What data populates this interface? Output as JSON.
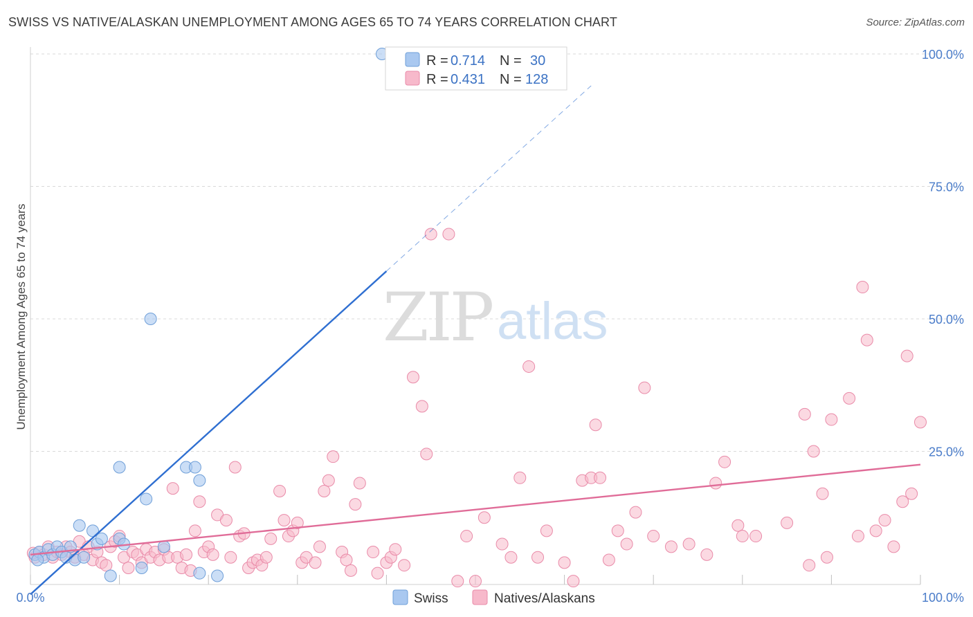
{
  "title": "SWISS VS NATIVE/ALASKAN UNEMPLOYMENT AMONG AGES 65 TO 74 YEARS CORRELATION CHART",
  "source": "Source: ZipAtlas.com",
  "watermark": {
    "zip": "ZIP",
    "atlas": "atlas"
  },
  "legend": {
    "rows": [
      {
        "r_label": "R =",
        "r_value": "0.714",
        "n_label": "N =",
        "n_value": "30",
        "color": "#a9c8f0"
      },
      {
        "r_label": "R =",
        "r_value": "0.431",
        "n_label": "N =",
        "n_value": "128",
        "color": "#f7b9cb"
      }
    ]
  },
  "colors": {
    "swiss_fill": "#a9c8f0",
    "swiss_stroke": "#6f9fd8",
    "swiss_line": "#2f6fd1",
    "native_fill": "#f7b9cb",
    "native_stroke": "#e98aa8",
    "native_line": "#e06c98",
    "grid": "#d8d8d8",
    "tick_text": "#4a7cc9"
  },
  "chart_data": {
    "type": "scatter",
    "title": "SWISS VS NATIVE/ALASKAN UNEMPLOYMENT AMONG AGES 65 TO 74 YEARS CORRELATION CHART",
    "xlabel": "",
    "ylabel": "Unemployment Among Ages 65 to 74 years",
    "xlim": [
      0,
      100
    ],
    "ylim": [
      0,
      100
    ],
    "x_tick_labels": [
      "0.0%",
      "100.0%"
    ],
    "y_tick_labels": [
      "25.0%",
      "50.0%",
      "75.0%",
      "100.0%"
    ],
    "y_ticks": [
      25,
      50,
      75,
      100
    ],
    "grid": true,
    "legend_position": "top-center",
    "series": [
      {
        "name": "Swiss",
        "r": 0.714,
        "n": 30,
        "trend": {
          "x0": 0,
          "y0": -2,
          "x1": 40,
          "y1": 59,
          "dash_to_x": 63,
          "dash_to_y": 94
        },
        "points": [
          [
            0.5,
            5.5
          ],
          [
            1,
            6
          ],
          [
            1.5,
            5
          ],
          [
            2,
            6.5
          ],
          [
            2.5,
            5.5
          ],
          [
            3,
            7
          ],
          [
            3.5,
            6
          ],
          [
            4,
            5
          ],
          [
            4.5,
            7
          ],
          [
            5,
            4.5
          ],
          [
            5.5,
            11
          ],
          [
            6,
            5
          ],
          [
            7,
            10
          ],
          [
            7.5,
            7.5
          ],
          [
            8,
            8.5
          ],
          [
            9,
            1.5
          ],
          [
            10,
            8.5
          ],
          [
            10.5,
            7.5
          ],
          [
            10,
            22
          ],
          [
            12.5,
            3
          ],
          [
            13,
            16
          ],
          [
            13.5,
            50
          ],
          [
            15,
            7
          ],
          [
            17.5,
            22
          ],
          [
            18.5,
            22
          ],
          [
            19,
            2
          ],
          [
            19,
            19.5
          ],
          [
            21,
            1.5
          ],
          [
            39.5,
            100
          ],
          [
            0.8,
            4.5
          ]
        ]
      },
      {
        "name": "Natives/Alaskans",
        "r": 0.431,
        "n": 128,
        "trend": {
          "x0": 0,
          "y0": 5.5,
          "x1": 100,
          "y1": 22.5
        },
        "points": [
          [
            0.5,
            5
          ],
          [
            1,
            6
          ],
          [
            1.5,
            5.5
          ],
          [
            2,
            7
          ],
          [
            2.5,
            5
          ],
          [
            3,
            6
          ],
          [
            3.5,
            5.5
          ],
          [
            4,
            7
          ],
          [
            4.5,
            6
          ],
          [
            5,
            5
          ],
          [
            5.5,
            8
          ],
          [
            6,
            5.5
          ],
          [
            6.5,
            7
          ],
          [
            7,
            4.5
          ],
          [
            7.5,
            6
          ],
          [
            8,
            4
          ],
          [
            8.5,
            3.5
          ],
          [
            9,
            7
          ],
          [
            9.5,
            8
          ],
          [
            10,
            9
          ],
          [
            10.5,
            5
          ],
          [
            11,
            3
          ],
          [
            11.5,
            6
          ],
          [
            12,
            5.5
          ],
          [
            12.5,
            4
          ],
          [
            13,
            6.5
          ],
          [
            13.5,
            5
          ],
          [
            14,
            6
          ],
          [
            14.5,
            4.5
          ],
          [
            15,
            6.5
          ],
          [
            15.5,
            5
          ],
          [
            16,
            18
          ],
          [
            16.5,
            5
          ],
          [
            17,
            3
          ],
          [
            17.5,
            5.5
          ],
          [
            18,
            2.5
          ],
          [
            18.5,
            10
          ],
          [
            19,
            15.5
          ],
          [
            19.5,
            6
          ],
          [
            20,
            7
          ],
          [
            20.5,
            5.5
          ],
          [
            21,
            13
          ],
          [
            22,
            12
          ],
          [
            22.5,
            5
          ],
          [
            23,
            22
          ],
          [
            23.5,
            9
          ],
          [
            24,
            9.5
          ],
          [
            24.5,
            3
          ],
          [
            25,
            4
          ],
          [
            25.5,
            4.5
          ],
          [
            26,
            3.5
          ],
          [
            26.5,
            5
          ],
          [
            27,
            8.5
          ],
          [
            28,
            17.5
          ],
          [
            28.5,
            12
          ],
          [
            29,
            9
          ],
          [
            29.5,
            10
          ],
          [
            30,
            11.5
          ],
          [
            30.5,
            4
          ],
          [
            31,
            5
          ],
          [
            32,
            4
          ],
          [
            32.5,
            7
          ],
          [
            33,
            17.5
          ],
          [
            33.5,
            19.5
          ],
          [
            34,
            24
          ],
          [
            35,
            6
          ],
          [
            35.5,
            4.5
          ],
          [
            36,
            2.5
          ],
          [
            36.5,
            15
          ],
          [
            37,
            19
          ],
          [
            38.5,
            6
          ],
          [
            39,
            2
          ],
          [
            40,
            4
          ],
          [
            40.5,
            5
          ],
          [
            41,
            6.5
          ],
          [
            42,
            3.5
          ],
          [
            43,
            39
          ],
          [
            44,
            33.5
          ],
          [
            44.5,
            24.5
          ],
          [
            45,
            66
          ],
          [
            47,
            66
          ],
          [
            48,
            0.5
          ],
          [
            49,
            9
          ],
          [
            50,
            0.5
          ],
          [
            51,
            12.5
          ],
          [
            53,
            7.5
          ],
          [
            54,
            5
          ],
          [
            55,
            20
          ],
          [
            56,
            41
          ],
          [
            57,
            5
          ],
          [
            58,
            10
          ],
          [
            60,
            4
          ],
          [
            61,
            0.5
          ],
          [
            62,
            19.5
          ],
          [
            63,
            20
          ],
          [
            63.5,
            30
          ],
          [
            64,
            20
          ],
          [
            65,
            4.5
          ],
          [
            66,
            10
          ],
          [
            67,
            7.5
          ],
          [
            68,
            13.5
          ],
          [
            69,
            37
          ],
          [
            70,
            9
          ],
          [
            72,
            7
          ],
          [
            74,
            7.5
          ],
          [
            76,
            5.5
          ],
          [
            77,
            19
          ],
          [
            78,
            23
          ],
          [
            79.5,
            11
          ],
          [
            80,
            9
          ],
          [
            81.5,
            9
          ],
          [
            85,
            11.5
          ],
          [
            87,
            32
          ],
          [
            87.5,
            3.5
          ],
          [
            88,
            25
          ],
          [
            89,
            17
          ],
          [
            89.5,
            5
          ],
          [
            90,
            31
          ],
          [
            92,
            35
          ],
          [
            93,
            9
          ],
          [
            93.5,
            56
          ],
          [
            94,
            46
          ],
          [
            95,
            10
          ],
          [
            96,
            12
          ],
          [
            97,
            7
          ],
          [
            98,
            15.5
          ],
          [
            98.5,
            43
          ],
          [
            99,
            17
          ],
          [
            100,
            30.5
          ],
          [
            0.3,
            5.8
          ]
        ]
      }
    ]
  },
  "bottom_legend": [
    {
      "label": "Swiss",
      "color": "#a9c8f0"
    },
    {
      "label": "Natives/Alaskans",
      "color": "#f7b9cb"
    }
  ]
}
